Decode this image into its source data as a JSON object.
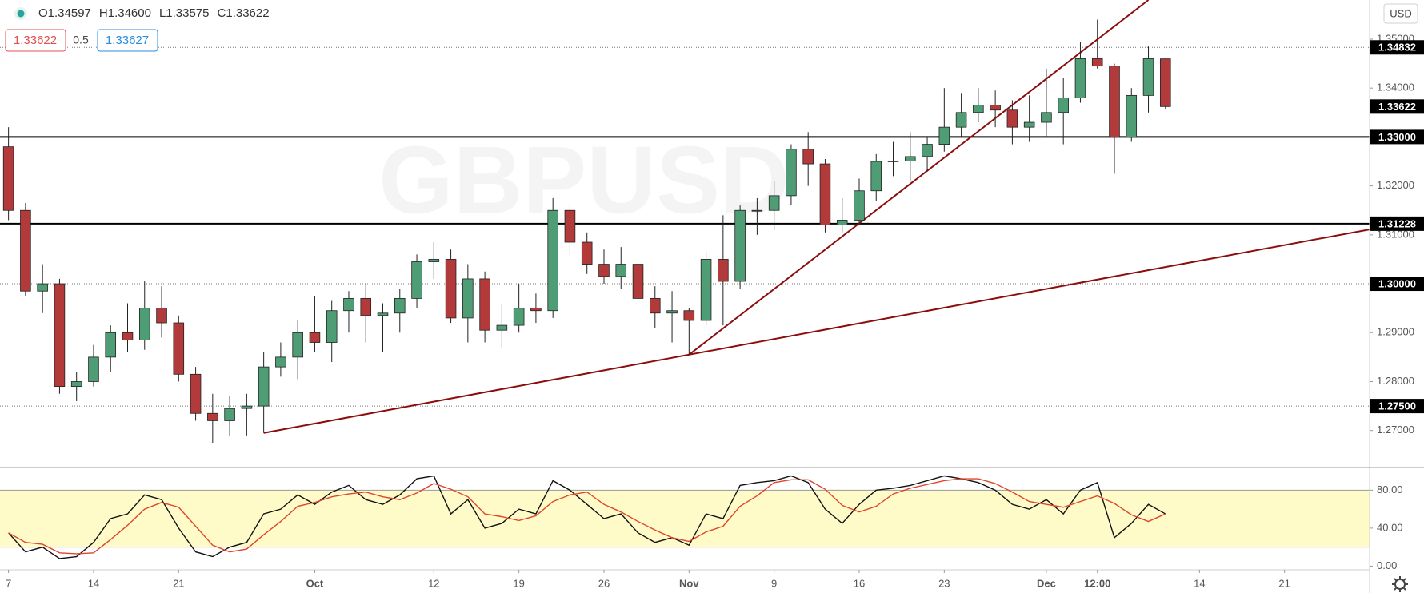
{
  "chart_data": {
    "type": "candlestick",
    "symbol": "GBPUSD",
    "ohlc_header": [
      "O1.34597",
      "H1.34600",
      "L1.33575",
      "C1.33622"
    ],
    "bid": "1.33622",
    "spread": "0.5",
    "ask": "1.33627",
    "currency": "USD",
    "up_color": "#4f9d74",
    "down_color": "#b23a3a",
    "wick_color": "#222222",
    "candles": [
      [
        1.328,
        1.332,
        1.313,
        1.315
      ],
      [
        1.315,
        1.3165,
        1.2975,
        1.2985
      ],
      [
        1.2985,
        1.304,
        1.294,
        1.3
      ],
      [
        1.3,
        1.301,
        1.2775,
        1.279
      ],
      [
        1.279,
        1.282,
        1.276,
        1.28
      ],
      [
        1.28,
        1.2875,
        1.279,
        1.285
      ],
      [
        1.285,
        1.2915,
        1.282,
        1.29
      ],
      [
        1.29,
        1.296,
        1.286,
        1.2885
      ],
      [
        1.2885,
        1.3005,
        1.2865,
        1.295
      ],
      [
        1.295,
        1.2995,
        1.289,
        1.292
      ],
      [
        1.292,
        1.2935,
        1.28,
        1.2815
      ],
      [
        1.2815,
        1.283,
        1.272,
        1.2735
      ],
      [
        1.2735,
        1.2775,
        1.2675,
        1.272
      ],
      [
        1.272,
        1.277,
        1.269,
        1.2745
      ],
      [
        1.2745,
        1.2775,
        1.269,
        1.275
      ],
      [
        1.275,
        1.286,
        1.2695,
        1.283
      ],
      [
        1.283,
        1.288,
        1.281,
        1.285
      ],
      [
        1.285,
        1.2925,
        1.2805,
        1.29
      ],
      [
        1.29,
        1.2975,
        1.286,
        1.288
      ],
      [
        1.288,
        1.2965,
        1.284,
        1.2945
      ],
      [
        1.2945,
        1.2985,
        1.29,
        1.297
      ],
      [
        1.297,
        1.3,
        1.288,
        1.2935
      ],
      [
        1.2935,
        1.296,
        1.286,
        1.294
      ],
      [
        1.294,
        1.299,
        1.29,
        1.297
      ],
      [
        1.297,
        1.306,
        1.295,
        1.3045
      ],
      [
        1.3045,
        1.3085,
        1.301,
        1.305
      ],
      [
        1.305,
        1.307,
        1.292,
        1.293
      ],
      [
        1.293,
        1.304,
        1.288,
        1.301
      ],
      [
        1.301,
        1.3025,
        1.288,
        1.2905
      ],
      [
        1.2905,
        1.296,
        1.287,
        1.2915
      ],
      [
        1.2915,
        1.3,
        1.29,
        1.295
      ],
      [
        1.295,
        1.298,
        1.292,
        1.2945
      ],
      [
        1.2945,
        1.3175,
        1.293,
        1.315
      ],
      [
        1.315,
        1.316,
        1.3055,
        1.3085
      ],
      [
        1.3085,
        1.3105,
        1.302,
        1.304
      ],
      [
        1.304,
        1.307,
        1.3,
        1.3015
      ],
      [
        1.3015,
        1.3075,
        1.299,
        1.304
      ],
      [
        1.304,
        1.3045,
        1.295,
        1.297
      ],
      [
        1.297,
        1.2995,
        1.291,
        1.294
      ],
      [
        1.294,
        1.2985,
        1.288,
        1.2945
      ],
      [
        1.2945,
        1.295,
        1.2855,
        1.2925
      ],
      [
        1.2925,
        1.3065,
        1.2915,
        1.305
      ],
      [
        1.305,
        1.314,
        1.2915,
        1.3005
      ],
      [
        1.3005,
        1.316,
        1.299,
        1.315
      ],
      [
        1.315,
        1.3175,
        1.31,
        1.315
      ],
      [
        1.315,
        1.321,
        1.311,
        1.318
      ],
      [
        1.318,
        1.3285,
        1.316,
        1.3275
      ],
      [
        1.3275,
        1.331,
        1.32,
        1.3245
      ],
      [
        1.3245,
        1.3255,
        1.3105,
        1.312
      ],
      [
        1.312,
        1.3175,
        1.3105,
        1.313
      ],
      [
        1.313,
        1.3215,
        1.312,
        1.319
      ],
      [
        1.319,
        1.3265,
        1.317,
        1.325
      ],
      [
        1.325,
        1.329,
        1.322,
        1.3251
      ],
      [
        1.3251,
        1.331,
        1.321,
        1.326
      ],
      [
        1.326,
        1.33,
        1.323,
        1.3285
      ],
      [
        1.3285,
        1.34,
        1.327,
        1.332
      ],
      [
        1.332,
        1.339,
        1.33,
        1.335
      ],
      [
        1.335,
        1.34,
        1.333,
        1.3365
      ],
      [
        1.3365,
        1.3395,
        1.332,
        1.3355
      ],
      [
        1.3355,
        1.3375,
        1.3285,
        1.332
      ],
      [
        1.332,
        1.3385,
        1.329,
        1.333
      ],
      [
        1.333,
        1.344,
        1.33,
        1.335
      ],
      [
        1.335,
        1.342,
        1.3285,
        1.338
      ],
      [
        1.338,
        1.3495,
        1.337,
        1.346
      ],
      [
        1.346,
        1.354,
        1.344,
        1.3445
      ],
      [
        1.3445,
        1.345,
        1.3225,
        1.33
      ],
      [
        1.33,
        1.34,
        1.329,
        1.3385
      ],
      [
        1.3385,
        1.3485,
        1.335,
        1.346
      ],
      [
        1.34597,
        1.346,
        1.33575,
        1.33622
      ]
    ],
    "xlim": [
      -0.5,
      80
    ],
    "xticks": [
      {
        "value": 0,
        "label": "7"
      },
      {
        "value": 5,
        "label": "14"
      },
      {
        "value": 10,
        "label": "21"
      },
      {
        "value": 18,
        "label": "Oct"
      },
      {
        "value": 25,
        "label": "12"
      },
      {
        "value": 30,
        "label": "19"
      },
      {
        "value": 35,
        "label": "26"
      },
      {
        "value": 40,
        "label": "Nov"
      },
      {
        "value": 45,
        "label": "9"
      },
      {
        "value": 50,
        "label": "16"
      },
      {
        "value": 55,
        "label": "23"
      },
      {
        "value": 61,
        "label": "Dec"
      },
      {
        "value": 64,
        "label": "12:00"
      },
      {
        "value": 70,
        "label": "14"
      },
      {
        "value": 75,
        "label": "21"
      }
    ],
    "ylim": [
      1.2626,
      1.358
    ],
    "yticks": [
      {
        "value": 1.27,
        "label": "1.27000"
      },
      {
        "value": 1.28,
        "label": "1.28000"
      },
      {
        "value": 1.29,
        "label": "1.29000"
      },
      {
        "value": 1.3,
        "label": "1.30000"
      },
      {
        "value": 1.31,
        "label": "1.31000"
      },
      {
        "value": 1.32,
        "label": "1.32000"
      },
      {
        "value": 1.33,
        "label": "1.33000"
      },
      {
        "value": 1.34,
        "label": "1.34000"
      },
      {
        "value": 1.35,
        "label": "1.35000"
      }
    ],
    "grid": false,
    "price_lines": [
      {
        "value": 1.34832,
        "label": "1.34832",
        "style": "dotted"
      },
      {
        "value": 1.33622,
        "label": "1.33622",
        "style": "none"
      },
      {
        "value": 1.33,
        "label": "1.33000",
        "style": "solid"
      },
      {
        "value": 1.31228,
        "label": "1.31228",
        "style": "solid"
      },
      {
        "value": 1.3,
        "label": "1.30000",
        "style": "dotted"
      },
      {
        "value": 1.275,
        "label": "1.27500",
        "style": "dotted"
      }
    ],
    "trendlines": [
      {
        "x": [
          15,
          80
        ],
        "y": [
          1.2695,
          1.3111
        ],
        "color": "#8b0d0d"
      },
      {
        "x": [
          40,
          67
        ],
        "y": [
          1.2855,
          1.358
        ],
        "color": "#8b0d0d"
      }
    ],
    "stochastic": {
      "ylim": [
        -3,
        103
      ],
      "yticks": [
        {
          "value": 0,
          "label": "0.00"
        },
        {
          "value": 40,
          "label": "40.00"
        },
        {
          "value": 80,
          "label": "80.00"
        }
      ],
      "band": [
        20,
        80
      ],
      "band_color": "#fffbc8",
      "series": [
        {
          "color": "#111111",
          "values": [
            35,
            15,
            20,
            8,
            10,
            25,
            50,
            55,
            75,
            70,
            40,
            15,
            10,
            20,
            25,
            55,
            60,
            75,
            65,
            78,
            85,
            70,
            65,
            75,
            92,
            95,
            55,
            70,
            40,
            45,
            60,
            55,
            90,
            80,
            65,
            50,
            55,
            35,
            25,
            30,
            22,
            55,
            50,
            85,
            88,
            90,
            95,
            88,
            60,
            45,
            65,
            80,
            82,
            85,
            90,
            95,
            92,
            88,
            80,
            65,
            60,
            70,
            55,
            80,
            88,
            30,
            45,
            65,
            55
          ]
        },
        {
          "color": "#e0452c",
          "values": [
            35,
            25,
            23,
            14,
            13,
            14,
            28,
            43,
            60,
            67,
            62,
            42,
            22,
            15,
            18,
            33,
            47,
            63,
            67,
            73,
            76,
            78,
            73,
            70,
            77,
            87,
            81,
            73,
            55,
            52,
            48,
            53,
            68,
            75,
            78,
            65,
            57,
            47,
            38,
            30,
            26,
            36,
            42,
            63,
            74,
            88,
            91,
            91,
            81,
            64,
            57,
            63,
            76,
            82,
            86,
            90,
            92,
            92,
            87,
            78,
            68,
            65,
            62,
            68,
            74,
            66,
            54,
            47,
            55
          ]
        }
      ]
    }
  }
}
